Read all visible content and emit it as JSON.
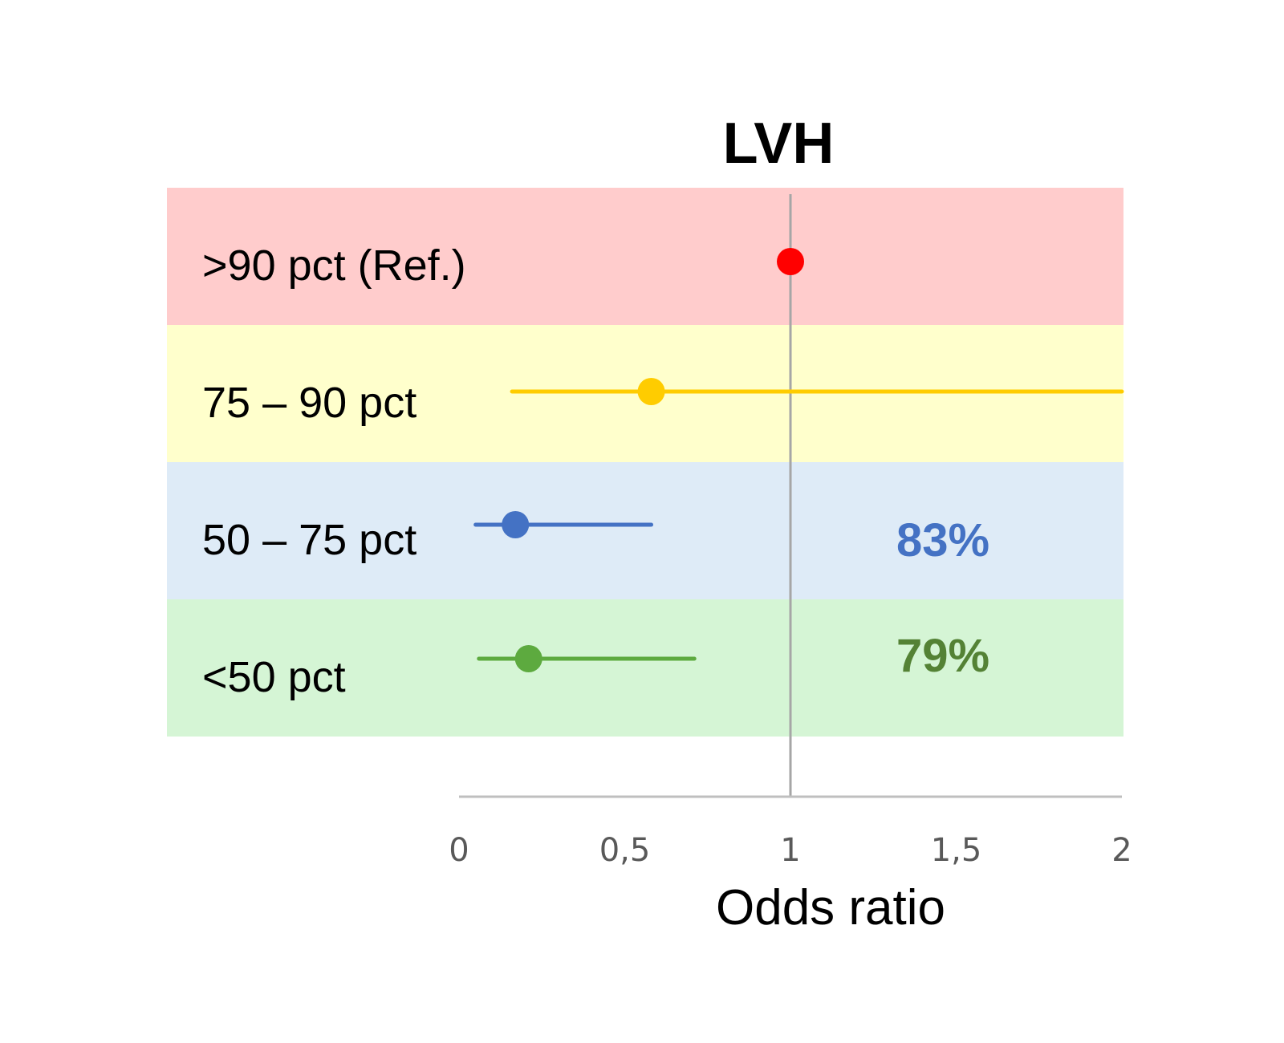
{
  "chart_data": {
    "type": "forest",
    "title": "LVH",
    "xlabel": "Odds ratio",
    "xlim": [
      0,
      2
    ],
    "xticks": [
      {
        "value": 0,
        "label": "0"
      },
      {
        "value": 0.5,
        "label": "0,5"
      },
      {
        "value": 1,
        "label": "1"
      },
      {
        "value": 1.5,
        "label": "1,5"
      },
      {
        "value": 2,
        "label": "2"
      }
    ],
    "reference_value": 1,
    "grid": false,
    "rows": [
      {
        "label": ">90 pct (Ref.)",
        "or": 1.0,
        "ci_low": null,
        "ci_high": null,
        "annotation": "",
        "color": "#ff0000",
        "band_color": "#ffcccc"
      },
      {
        "label": "75 – 90 pct",
        "or": 0.58,
        "ci_low": 0.16,
        "ci_high": 2.0,
        "annotation": "",
        "color": "#ffcc00",
        "band_color": "#ffffcc"
      },
      {
        "label": "50 – 75 pct",
        "or": 0.17,
        "ci_low": 0.05,
        "ci_high": 0.58,
        "annotation": "83%",
        "color": "#4472c4",
        "band_color": "#deebf7"
      },
      {
        "label": "<50 pct",
        "or": 0.21,
        "ci_low": 0.06,
        "ci_high": 0.71,
        "annotation": "79%",
        "color": "#5daa3f",
        "band_color": "#d5f5d5",
        "annotation_color": "#548235"
      }
    ]
  }
}
